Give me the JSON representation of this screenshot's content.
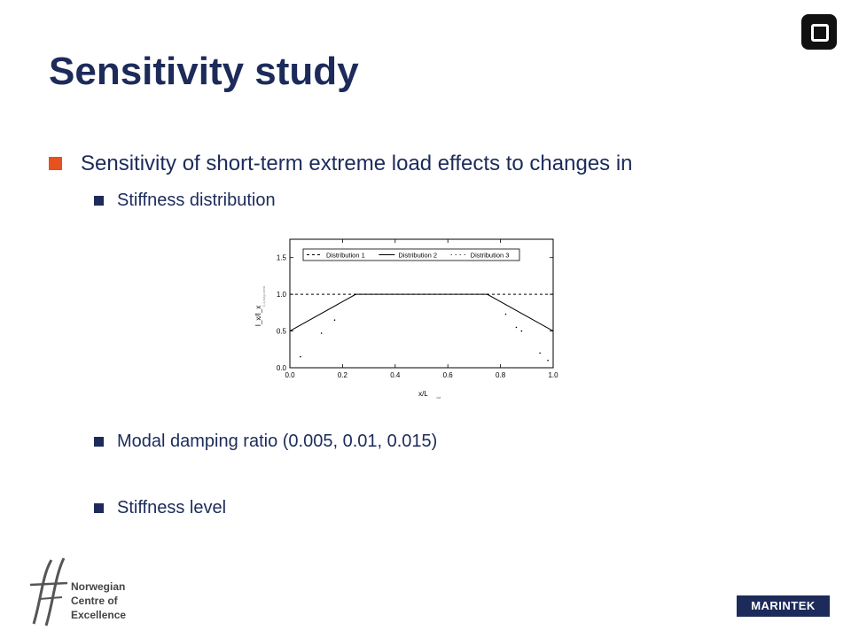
{
  "slide": {
    "title": "Sensitivity study",
    "bullets": [
      {
        "text": "Sensitivity of short-term extreme load effects to changes in"
      },
      {
        "text": "Stiffness distribution"
      },
      {
        "text": "Modal damping ratio (0.005, 0.01, 0.015)"
      },
      {
        "text": "Stiffness level"
      }
    ]
  },
  "footer": {
    "nce_line1": "Norwegian",
    "nce_line2": "Centre of",
    "nce_line3": "Excellence",
    "brand": "MARINTEK"
  },
  "colors": {
    "title": "#1c2b5a",
    "bullet_accent": "#e8501f",
    "brand_bg": "#1c2b5a"
  },
  "icons": {
    "corner": "rounded-square-logo-icon",
    "footer": "ff-logo-icon"
  },
  "chart_data": {
    "type": "line",
    "xlabel": "x/L",
    "xlabel_sub": "tot",
    "ylabel": "I_x/I_x",
    "ylabel_sub": "0,1,avg,const",
    "xlim": [
      0,
      1
    ],
    "ylim": [
      0,
      1.75
    ],
    "x_ticks": [
      0.0,
      0.2,
      0.4,
      0.6,
      0.8,
      1.0
    ],
    "x_tick_labels": [
      "0.0",
      "0.2",
      "0.4",
      "0.6",
      "0.8",
      "1.0"
    ],
    "y_ticks": [
      0.0,
      0.5,
      1.0,
      1.5
    ],
    "y_tick_labels": [
      "0.0",
      "0.5",
      "1.0",
      "1.5"
    ],
    "legend_position": "top",
    "series": [
      {
        "name": "Distribution 1",
        "style": "dashed",
        "x": [
          0,
          1
        ],
        "y": [
          1.0,
          1.0
        ]
      },
      {
        "name": "Distribution 2",
        "style": "solid",
        "x": [
          0,
          0.25,
          0.75,
          1
        ],
        "y": [
          0.5,
          1.0,
          1.0,
          0.5
        ]
      },
      {
        "name": "Distribution 3",
        "style": "dotted",
        "x": [
          0.04,
          0.12,
          0.17,
          0.25,
          0.75,
          0.82,
          0.86,
          0.88,
          0.95,
          0.98
        ],
        "y": [
          0.15,
          0.47,
          0.65,
          1.0,
          1.0,
          0.73,
          0.55,
          0.5,
          0.2,
          0.1
        ]
      }
    ]
  }
}
